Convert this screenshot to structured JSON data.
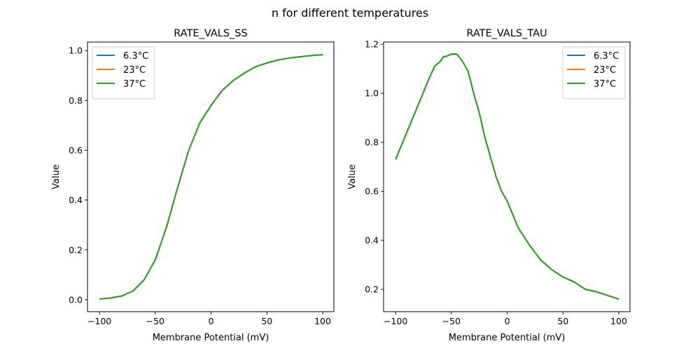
{
  "suptitle": "n for different temperatures",
  "chart_data": [
    {
      "type": "line",
      "title": "RATE_VALS_SS",
      "xlabel": "Membrane Potential (mV)",
      "ylabel": "Value",
      "xlim": [
        -110.7,
        110
      ],
      "ylim": [
        -0.048,
        1.034
      ],
      "xticks": [
        -100,
        -50,
        0,
        50,
        100
      ],
      "yticks": [
        0.0,
        0.2,
        0.4,
        0.6,
        0.8,
        1.0
      ],
      "ytick_labels": [
        "0.0",
        "0.2",
        "0.4",
        "0.6",
        "0.8",
        "1.0"
      ],
      "legend_position": "upper-left",
      "x": [
        -100,
        -90,
        -80,
        -70,
        -60,
        -50,
        -40,
        -30,
        -20,
        -10,
        0,
        10,
        20,
        30,
        40,
        50,
        60,
        70,
        80,
        90,
        100
      ],
      "series": [
        {
          "name": "6.3°C",
          "color": "#1f77b4",
          "values": [
            0.003,
            0.007,
            0.015,
            0.035,
            0.08,
            0.16,
            0.29,
            0.45,
            0.6,
            0.71,
            0.78,
            0.84,
            0.88,
            0.91,
            0.935,
            0.95,
            0.962,
            0.97,
            0.975,
            0.98,
            0.983
          ]
        },
        {
          "name": "23°C",
          "color": "#ff7f0e",
          "values": [
            0.003,
            0.007,
            0.015,
            0.035,
            0.08,
            0.16,
            0.29,
            0.45,
            0.6,
            0.71,
            0.78,
            0.84,
            0.88,
            0.91,
            0.935,
            0.95,
            0.962,
            0.97,
            0.975,
            0.98,
            0.983
          ]
        },
        {
          "name": "37°C",
          "color": "#2ca02c",
          "values": [
            0.003,
            0.007,
            0.015,
            0.035,
            0.08,
            0.16,
            0.29,
            0.45,
            0.6,
            0.71,
            0.78,
            0.84,
            0.88,
            0.91,
            0.935,
            0.95,
            0.962,
            0.97,
            0.975,
            0.98,
            0.983
          ]
        }
      ]
    },
    {
      "type": "line",
      "title": "RATE_VALS_TAU",
      "xlabel": "Membrane Potential (mV)",
      "ylabel": "Value",
      "xlim": [
        -110.7,
        110
      ],
      "ylim": [
        0.109,
        1.209
      ],
      "xticks": [
        -100,
        -50,
        0,
        50,
        100
      ],
      "yticks": [
        0.2,
        0.4,
        0.6,
        0.8,
        1.0,
        1.2
      ],
      "ytick_labels": [
        "0.2",
        "0.4",
        "0.6",
        "0.8",
        "1.0",
        "1.2"
      ],
      "legend_position": "upper-right",
      "x": [
        -100,
        -90,
        -80,
        -70,
        -65,
        -60,
        -57,
        -55,
        -50,
        -45,
        -40,
        -35,
        -30,
        -25,
        -20,
        -15,
        -10,
        -5,
        0,
        10,
        20,
        30,
        40,
        50,
        60,
        70,
        80,
        90,
        100
      ],
      "series": [
        {
          "name": "6.3°C",
          "color": "#1f77b4",
          "values": [
            0.73,
            0.84,
            0.95,
            1.06,
            1.11,
            1.13,
            1.15,
            1.15,
            1.16,
            1.16,
            1.13,
            1.09,
            1.0,
            0.92,
            0.82,
            0.74,
            0.66,
            0.6,
            0.56,
            0.45,
            0.38,
            0.32,
            0.28,
            0.25,
            0.23,
            0.2,
            0.19,
            0.175,
            0.16
          ]
        },
        {
          "name": "23°C",
          "color": "#ff7f0e",
          "values": [
            0.73,
            0.84,
            0.95,
            1.06,
            1.11,
            1.13,
            1.15,
            1.15,
            1.16,
            1.16,
            1.13,
            1.09,
            1.0,
            0.92,
            0.82,
            0.74,
            0.66,
            0.6,
            0.56,
            0.45,
            0.38,
            0.32,
            0.28,
            0.25,
            0.23,
            0.2,
            0.19,
            0.175,
            0.16
          ]
        },
        {
          "name": "37°C",
          "color": "#2ca02c",
          "values": [
            0.73,
            0.84,
            0.95,
            1.06,
            1.11,
            1.13,
            1.15,
            1.15,
            1.16,
            1.16,
            1.13,
            1.09,
            1.0,
            0.92,
            0.82,
            0.74,
            0.66,
            0.6,
            0.56,
            0.45,
            0.38,
            0.32,
            0.28,
            0.25,
            0.23,
            0.2,
            0.19,
            0.175,
            0.16
          ]
        }
      ]
    }
  ]
}
